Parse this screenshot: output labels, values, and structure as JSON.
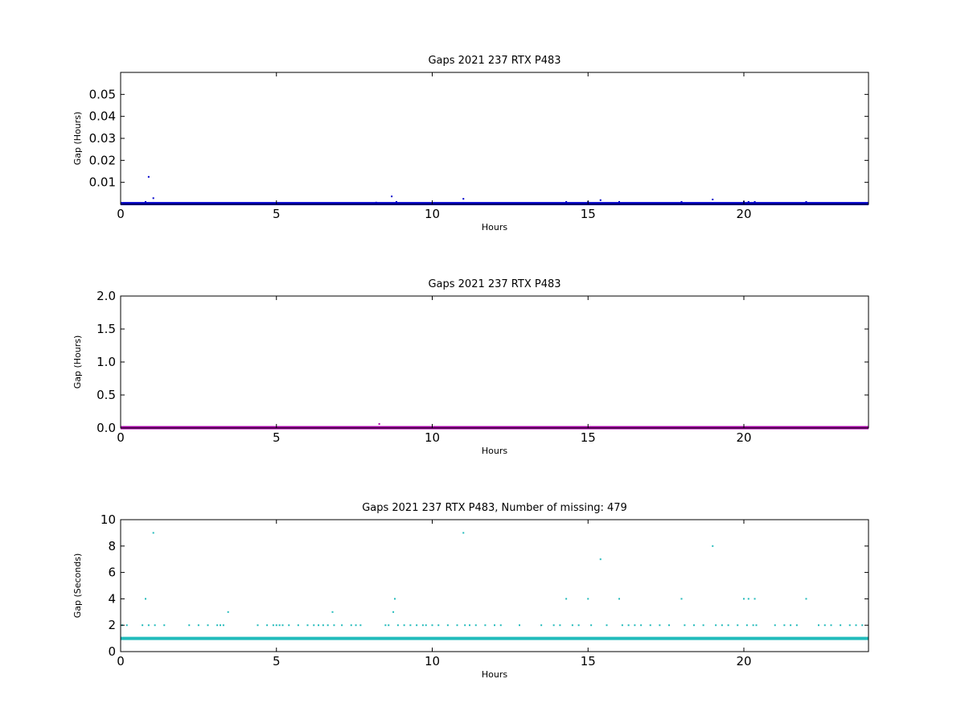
{
  "chart_data": [
    {
      "type": "scatter",
      "title": "Gaps 2021 237 RTX  P483",
      "xlabel": "Hours",
      "ylabel": "Gap (Hours)",
      "xlim": [
        0,
        24
      ],
      "ylim": [
        0,
        0.06
      ],
      "xticks": [
        "0",
        "5",
        "10",
        "15",
        "20"
      ],
      "yticks": [
        "0.01",
        "0.02",
        "0.03",
        "0.04",
        "0.05"
      ],
      "grid": false,
      "color": "#0000cc",
      "baseline": {
        "y": 0.0003,
        "from": 0,
        "to": 24
      },
      "points": [
        {
          "x": 0.8,
          "y": 0.0011
        },
        {
          "x": 0.9,
          "y": 0.0125
        },
        {
          "x": 1.05,
          "y": 0.0028
        },
        {
          "x": 8.2,
          "y": 0.0008
        },
        {
          "x": 8.7,
          "y": 0.0036
        },
        {
          "x": 8.85,
          "y": 0.0011
        },
        {
          "x": 11.0,
          "y": 0.0025
        },
        {
          "x": 14.3,
          "y": 0.0011
        },
        {
          "x": 15.0,
          "y": 0.0011
        },
        {
          "x": 15.4,
          "y": 0.0019
        },
        {
          "x": 16.0,
          "y": 0.0011
        },
        {
          "x": 18.0,
          "y": 0.0011
        },
        {
          "x": 19.0,
          "y": 0.0022
        },
        {
          "x": 20.0,
          "y": 0.0011
        },
        {
          "x": 20.15,
          "y": 0.0011
        },
        {
          "x": 20.35,
          "y": 0.0011
        },
        {
          "x": 22.0,
          "y": 0.0011
        }
      ]
    },
    {
      "type": "scatter",
      "title": "Gaps 2021 237 RTX  P483",
      "xlabel": "Hours",
      "ylabel": "Gap (Hours)",
      "xlim": [
        0,
        24
      ],
      "ylim": [
        0,
        2.0
      ],
      "xticks": [
        "0",
        "5",
        "10",
        "15",
        "20"
      ],
      "yticks": [
        "0.0",
        "0.5",
        "1.0",
        "1.5",
        "2.0"
      ],
      "grid": false,
      "color": "#aa00aa",
      "baseline": {
        "y": 0.005,
        "from": 0,
        "to": 24
      },
      "points": [
        {
          "x": 8.3,
          "y": 0.06
        }
      ]
    },
    {
      "type": "scatter",
      "title": "Gaps 2021 237 RTX  P483, Number of missing: 479",
      "xlabel": "Hours",
      "ylabel": "Gap (Seconds)",
      "xlim": [
        0,
        24
      ],
      "ylim": [
        0,
        10
      ],
      "xticks": [
        "0",
        "5",
        "10",
        "15",
        "20"
      ],
      "yticks": [
        "0",
        "2",
        "4",
        "6",
        "8",
        "10"
      ],
      "grid": false,
      "color": "#22bbbb",
      "baseline": {
        "y": 1,
        "from": 0,
        "to": 24
      },
      "points": [
        {
          "x": 0.05,
          "y": 2
        },
        {
          "x": 0.2,
          "y": 2
        },
        {
          "x": 0.7,
          "y": 2
        },
        {
          "x": 0.8,
          "y": 4
        },
        {
          "x": 0.9,
          "y": 2
        },
        {
          "x": 1.05,
          "y": 9
        },
        {
          "x": 1.1,
          "y": 2
        },
        {
          "x": 1.4,
          "y": 2
        },
        {
          "x": 2.2,
          "y": 2
        },
        {
          "x": 2.5,
          "y": 2
        },
        {
          "x": 2.8,
          "y": 2
        },
        {
          "x": 3.1,
          "y": 2
        },
        {
          "x": 3.2,
          "y": 2
        },
        {
          "x": 3.3,
          "y": 2
        },
        {
          "x": 3.45,
          "y": 3
        },
        {
          "x": 4.4,
          "y": 2
        },
        {
          "x": 4.7,
          "y": 2
        },
        {
          "x": 4.9,
          "y": 2
        },
        {
          "x": 5.0,
          "y": 2
        },
        {
          "x": 5.1,
          "y": 2
        },
        {
          "x": 5.2,
          "y": 2
        },
        {
          "x": 5.4,
          "y": 2
        },
        {
          "x": 5.7,
          "y": 2
        },
        {
          "x": 6.0,
          "y": 2
        },
        {
          "x": 6.2,
          "y": 2
        },
        {
          "x": 6.35,
          "y": 2
        },
        {
          "x": 6.5,
          "y": 2
        },
        {
          "x": 6.65,
          "y": 2
        },
        {
          "x": 6.8,
          "y": 3
        },
        {
          "x": 6.85,
          "y": 2
        },
        {
          "x": 7.1,
          "y": 2
        },
        {
          "x": 7.4,
          "y": 2
        },
        {
          "x": 7.55,
          "y": 2
        },
        {
          "x": 7.7,
          "y": 2
        },
        {
          "x": 8.3,
          "y": 1
        },
        {
          "x": 8.5,
          "y": 2
        },
        {
          "x": 8.6,
          "y": 2
        },
        {
          "x": 8.75,
          "y": 3
        },
        {
          "x": 8.8,
          "y": 4
        },
        {
          "x": 8.9,
          "y": 2
        },
        {
          "x": 9.1,
          "y": 2
        },
        {
          "x": 9.3,
          "y": 2
        },
        {
          "x": 9.5,
          "y": 2
        },
        {
          "x": 9.7,
          "y": 2
        },
        {
          "x": 9.8,
          "y": 2
        },
        {
          "x": 10.0,
          "y": 2
        },
        {
          "x": 10.2,
          "y": 2
        },
        {
          "x": 10.5,
          "y": 2
        },
        {
          "x": 10.8,
          "y": 2
        },
        {
          "x": 11.0,
          "y": 9
        },
        {
          "x": 11.05,
          "y": 2
        },
        {
          "x": 11.2,
          "y": 2
        },
        {
          "x": 11.4,
          "y": 2
        },
        {
          "x": 11.7,
          "y": 2
        },
        {
          "x": 12.0,
          "y": 2
        },
        {
          "x": 12.2,
          "y": 2
        },
        {
          "x": 12.8,
          "y": 2
        },
        {
          "x": 13.5,
          "y": 2
        },
        {
          "x": 13.9,
          "y": 2
        },
        {
          "x": 14.1,
          "y": 2
        },
        {
          "x": 14.3,
          "y": 4
        },
        {
          "x": 14.5,
          "y": 2
        },
        {
          "x": 14.7,
          "y": 2
        },
        {
          "x": 15.0,
          "y": 4
        },
        {
          "x": 15.1,
          "y": 2
        },
        {
          "x": 15.4,
          "y": 7
        },
        {
          "x": 15.6,
          "y": 2
        },
        {
          "x": 16.0,
          "y": 4
        },
        {
          "x": 16.1,
          "y": 2
        },
        {
          "x": 16.3,
          "y": 2
        },
        {
          "x": 16.5,
          "y": 2
        },
        {
          "x": 16.7,
          "y": 2
        },
        {
          "x": 17.0,
          "y": 2
        },
        {
          "x": 17.3,
          "y": 2
        },
        {
          "x": 17.6,
          "y": 2
        },
        {
          "x": 18.0,
          "y": 4
        },
        {
          "x": 18.1,
          "y": 2
        },
        {
          "x": 18.4,
          "y": 2
        },
        {
          "x": 18.7,
          "y": 2
        },
        {
          "x": 19.0,
          "y": 8
        },
        {
          "x": 19.1,
          "y": 2
        },
        {
          "x": 19.3,
          "y": 2
        },
        {
          "x": 19.5,
          "y": 2
        },
        {
          "x": 19.8,
          "y": 2
        },
        {
          "x": 20.0,
          "y": 4
        },
        {
          "x": 20.1,
          "y": 2
        },
        {
          "x": 20.15,
          "y": 4
        },
        {
          "x": 20.3,
          "y": 2
        },
        {
          "x": 20.35,
          "y": 4
        },
        {
          "x": 20.4,
          "y": 2
        },
        {
          "x": 21.0,
          "y": 2
        },
        {
          "x": 21.3,
          "y": 2
        },
        {
          "x": 21.5,
          "y": 2
        },
        {
          "x": 21.7,
          "y": 2
        },
        {
          "x": 22.0,
          "y": 4
        },
        {
          "x": 22.4,
          "y": 2
        },
        {
          "x": 22.6,
          "y": 2
        },
        {
          "x": 22.8,
          "y": 2
        },
        {
          "x": 23.1,
          "y": 2
        },
        {
          "x": 23.4,
          "y": 2
        },
        {
          "x": 23.6,
          "y": 2
        },
        {
          "x": 23.8,
          "y": 2
        }
      ]
    }
  ]
}
